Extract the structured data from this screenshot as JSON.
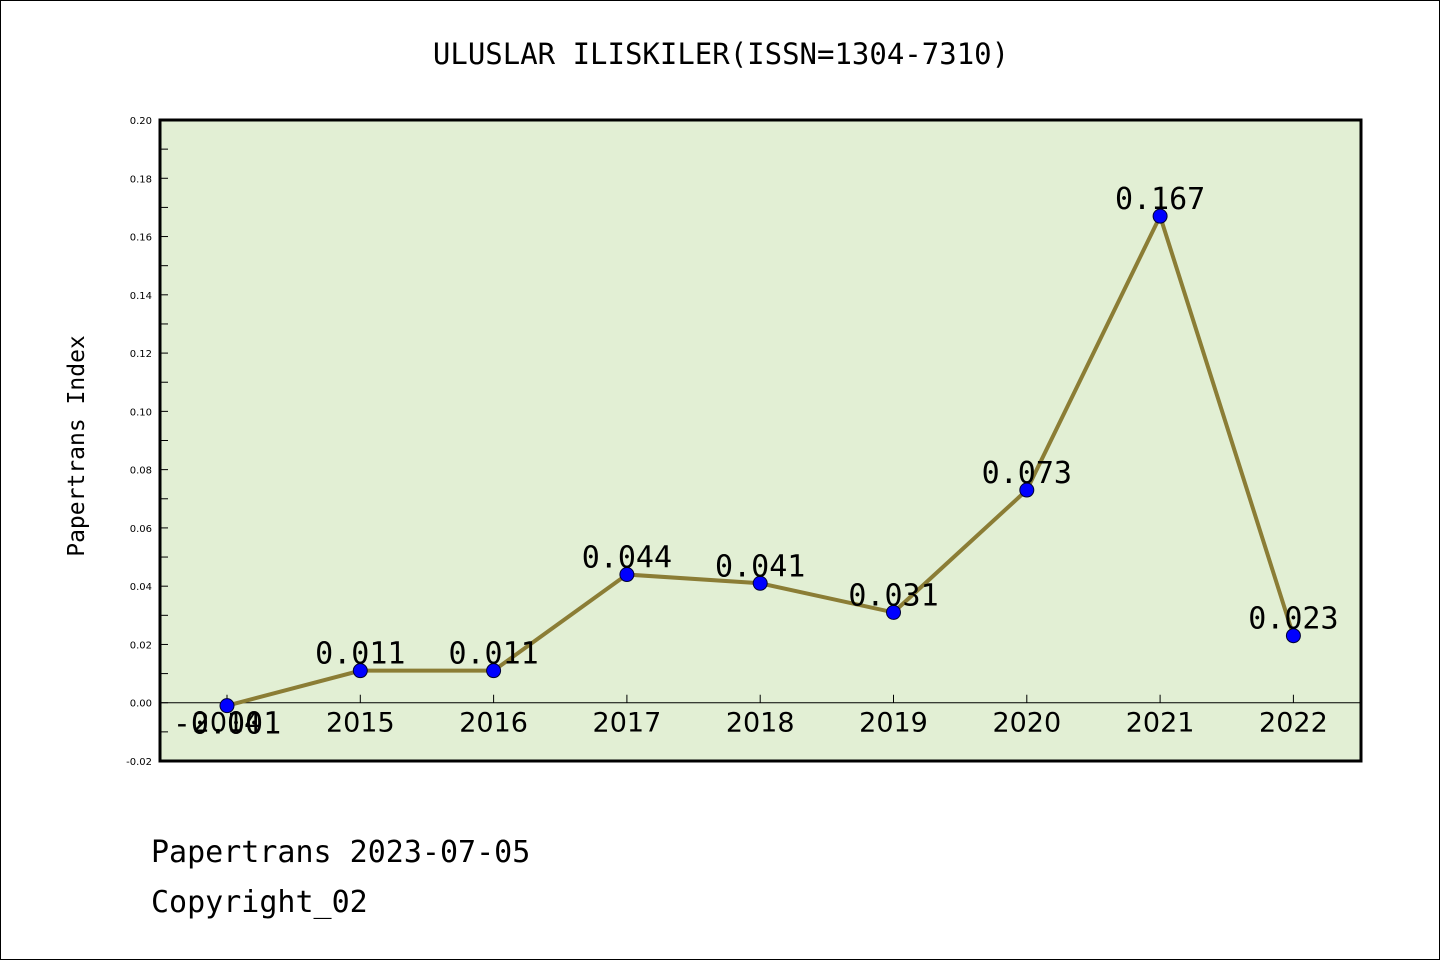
{
  "chart_title": "ULUSLAR ILISKILER(ISSN=1304-7310)",
  "footer": {
    "date_line": "Papertrans 2023-07-05",
    "copyright_line": "Copyright_02"
  },
  "colors": {
    "plot_background": "#e2efd4",
    "line": "#8b7d35",
    "marker": "#0000ff"
  },
  "chart_data": {
    "type": "line",
    "title": "ULUSLAR ILISKILER(ISSN=1304-7310)",
    "xlabel": "",
    "ylabel": "Papertrans Index",
    "categories": [
      "2014",
      "2015",
      "2016",
      "2017",
      "2018",
      "2019",
      "2020",
      "2021",
      "2022"
    ],
    "values": [
      -0.001,
      0.011,
      0.011,
      0.044,
      0.041,
      0.031,
      0.073,
      0.167,
      0.023
    ],
    "value_labels": [
      "-0.001",
      "0.011",
      "0.011",
      "0.044",
      "0.041",
      "0.031",
      "0.073",
      "0.167",
      "0.023"
    ],
    "ylim": [
      -0.02,
      0.2
    ],
    "yticks": [
      "-0.02",
      "0.00",
      "0.02",
      "0.04",
      "0.06",
      "0.08",
      "0.10",
      "0.12",
      "0.14",
      "0.16",
      "0.18",
      "0.20"
    ],
    "grid": false,
    "legend": "none"
  }
}
